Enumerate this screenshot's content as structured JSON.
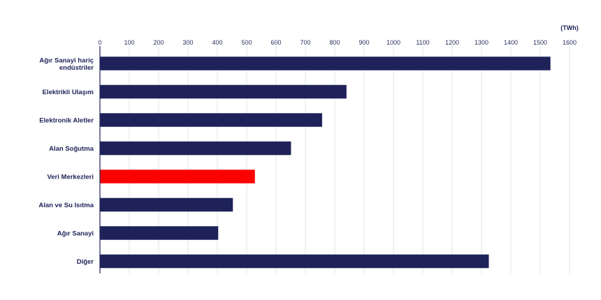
{
  "chart_data": {
    "type": "bar",
    "orientation": "horizontal",
    "unit": "(TWh)",
    "categories": [
      [
        "Ağır Sanayi hariç",
        "endüstriler"
      ],
      [
        "Elektrikli Ulaşım"
      ],
      [
        "Elektronik Aletler"
      ],
      [
        "Alan Soğutma"
      ],
      [
        "Veri Merkezleri"
      ],
      [
        "Alan ve Su Isıtma"
      ],
      [
        "Ağır Sanayi"
      ],
      [
        "Diğer"
      ]
    ],
    "values": [
      1535,
      840,
      757,
      651,
      528,
      453,
      403,
      1325
    ],
    "highlight_index": 4,
    "xlim": [
      0,
      1600
    ],
    "xticks": [
      "0",
      "100",
      "200",
      "300",
      "400",
      "500",
      "600",
      "700",
      "800",
      "900",
      "1000",
      "1100",
      "1200",
      "1300",
      "1400",
      "1500",
      "1600"
    ],
    "tick_values": [
      0,
      100,
      200,
      300,
      400,
      500,
      600,
      700,
      800,
      900,
      1000,
      1100,
      1200,
      1300,
      1400,
      1500,
      1600
    ],
    "grid": true,
    "colors": {
      "bar": "#1e2259",
      "highlight": "#ff0000",
      "grid": "#e1e3ee"
    }
  }
}
